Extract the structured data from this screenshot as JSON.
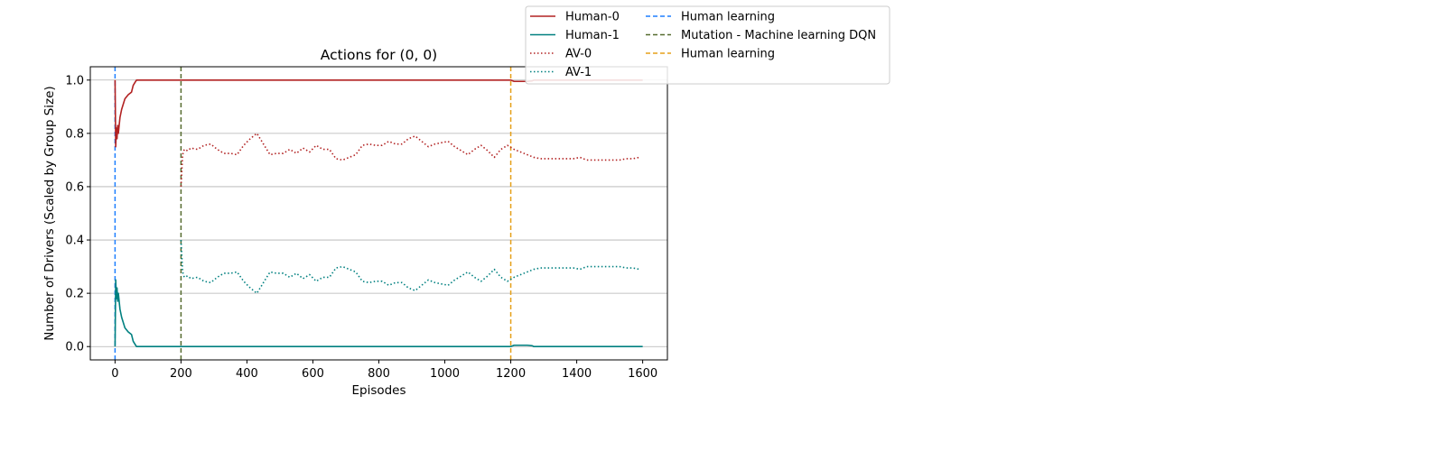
{
  "chart_data": {
    "type": "line",
    "title": "Actions for (0, 0)",
    "xlabel": "Episodes",
    "ylabel": "Number of Drivers (Scaled by Group Size)",
    "xlim": [
      -75,
      1675
    ],
    "ylim": [
      -0.05,
      1.05
    ],
    "xticks": [
      0,
      200,
      400,
      600,
      800,
      1000,
      1200,
      1400,
      1600
    ],
    "yticks": [
      0.0,
      0.2,
      0.4,
      0.6,
      0.8,
      1.0
    ],
    "grid": "horizontal",
    "legend_placement": "upper-right, outside",
    "series": [
      {
        "name": "Human-0",
        "color": "#b22222",
        "style": "solid",
        "x": [
          0,
          2,
          4,
          6,
          8,
          10,
          15,
          20,
          25,
          30,
          40,
          50,
          55,
          60,
          65,
          70,
          75,
          80,
          1200,
          1210,
          1230,
          1250,
          1265,
          1270,
          1600
        ],
        "y": [
          1.0,
          0.75,
          0.82,
          0.78,
          0.83,
          0.8,
          0.86,
          0.89,
          0.91,
          0.93,
          0.945,
          0.955,
          0.98,
          0.99,
          1.0,
          1.0,
          1.0,
          1.0,
          1.0,
          0.995,
          0.995,
          0.995,
          0.997,
          1.0,
          1.0
        ]
      },
      {
        "name": "Human-1",
        "color": "#008080",
        "style": "solid",
        "x": [
          0,
          2,
          4,
          6,
          8,
          10,
          15,
          20,
          25,
          30,
          40,
          50,
          55,
          60,
          65,
          70,
          75,
          80,
          1200,
          1210,
          1230,
          1250,
          1265,
          1270,
          1600
        ],
        "y": [
          0.0,
          0.25,
          0.18,
          0.22,
          0.17,
          0.2,
          0.14,
          0.11,
          0.09,
          0.07,
          0.055,
          0.045,
          0.02,
          0.01,
          0.0,
          0.0,
          0.0,
          0.0,
          0.0,
          0.005,
          0.005,
          0.005,
          0.003,
          0.0,
          0.0
        ]
      },
      {
        "name": "AV-0",
        "color": "#b22222",
        "style": "dotted",
        "x": [
          200,
          205,
          210,
          220,
          230,
          250,
          270,
          290,
          310,
          330,
          350,
          370,
          390,
          410,
          430,
          450,
          470,
          490,
          510,
          530,
          550,
          570,
          590,
          610,
          630,
          650,
          670,
          690,
          710,
          730,
          750,
          770,
          790,
          810,
          830,
          850,
          870,
          890,
          910,
          930,
          950,
          970,
          990,
          1010,
          1030,
          1050,
          1070,
          1090,
          1110,
          1130,
          1150,
          1170,
          1190,
          1210,
          1230,
          1250,
          1270,
          1290,
          1310,
          1330,
          1350,
          1370,
          1390,
          1410,
          1430,
          1450,
          1470,
          1490,
          1510,
          1530,
          1550,
          1570,
          1590
        ],
        "y": [
          0.6,
          0.72,
          0.74,
          0.735,
          0.745,
          0.74,
          0.755,
          0.76,
          0.74,
          0.725,
          0.725,
          0.72,
          0.755,
          0.78,
          0.8,
          0.76,
          0.72,
          0.725,
          0.725,
          0.74,
          0.725,
          0.745,
          0.73,
          0.755,
          0.74,
          0.74,
          0.705,
          0.7,
          0.71,
          0.72,
          0.755,
          0.76,
          0.755,
          0.755,
          0.77,
          0.76,
          0.76,
          0.78,
          0.79,
          0.77,
          0.75,
          0.76,
          0.765,
          0.77,
          0.75,
          0.735,
          0.72,
          0.74,
          0.755,
          0.735,
          0.71,
          0.74,
          0.755,
          0.74,
          0.73,
          0.72,
          0.71,
          0.705,
          0.705,
          0.705,
          0.705,
          0.705,
          0.705,
          0.71,
          0.7,
          0.7,
          0.7,
          0.7,
          0.7,
          0.7,
          0.705,
          0.705,
          0.71
        ]
      },
      {
        "name": "AV-1",
        "color": "#008080",
        "style": "dotted",
        "x": [
          200,
          205,
          210,
          220,
          230,
          250,
          270,
          290,
          310,
          330,
          350,
          370,
          390,
          410,
          430,
          450,
          470,
          490,
          510,
          530,
          550,
          570,
          590,
          610,
          630,
          650,
          670,
          690,
          710,
          730,
          750,
          770,
          790,
          810,
          830,
          850,
          870,
          890,
          910,
          930,
          950,
          970,
          990,
          1010,
          1030,
          1050,
          1070,
          1090,
          1110,
          1130,
          1150,
          1170,
          1190,
          1210,
          1230,
          1250,
          1270,
          1290,
          1310,
          1330,
          1350,
          1370,
          1390,
          1410,
          1430,
          1450,
          1470,
          1490,
          1510,
          1530,
          1550,
          1570,
          1590
        ],
        "y": [
          0.4,
          0.28,
          0.26,
          0.265,
          0.255,
          0.26,
          0.245,
          0.24,
          0.26,
          0.275,
          0.275,
          0.28,
          0.245,
          0.22,
          0.2,
          0.24,
          0.28,
          0.275,
          0.275,
          0.26,
          0.275,
          0.255,
          0.27,
          0.245,
          0.26,
          0.26,
          0.295,
          0.3,
          0.29,
          0.28,
          0.245,
          0.24,
          0.245,
          0.245,
          0.23,
          0.24,
          0.24,
          0.22,
          0.21,
          0.23,
          0.25,
          0.24,
          0.235,
          0.23,
          0.25,
          0.265,
          0.28,
          0.26,
          0.245,
          0.265,
          0.29,
          0.26,
          0.245,
          0.26,
          0.27,
          0.28,
          0.29,
          0.295,
          0.295,
          0.295,
          0.295,
          0.295,
          0.295,
          0.29,
          0.3,
          0.3,
          0.3,
          0.3,
          0.3,
          0.3,
          0.295,
          0.295,
          0.29
        ]
      }
    ],
    "vlines": [
      {
        "name": "Human learning",
        "x": 0,
        "color": "#1e7fff",
        "style": "dashed"
      },
      {
        "name": "Mutation - Machine learning DQN",
        "x": 200,
        "color": "#556b2f",
        "style": "dashed"
      },
      {
        "name": "Human learning",
        "x": 1200,
        "color": "#e5a019",
        "style": "dashed"
      }
    ],
    "legend": {
      "columns": [
        [
          {
            "label": "Human-0",
            "color": "#b22222",
            "style": "solid"
          },
          {
            "label": "Human-1",
            "color": "#008080",
            "style": "solid"
          },
          {
            "label": "AV-0",
            "color": "#b22222",
            "style": "dotted"
          },
          {
            "label": "AV-1",
            "color": "#008080",
            "style": "dotted"
          }
        ],
        [
          {
            "label": "Human learning",
            "color": "#1e7fff",
            "style": "dashed"
          },
          {
            "label": "Mutation - Machine learning DQN",
            "color": "#556b2f",
            "style": "dashed"
          },
          {
            "label": "Human learning",
            "color": "#e5a019",
            "style": "dashed"
          }
        ]
      ]
    }
  }
}
